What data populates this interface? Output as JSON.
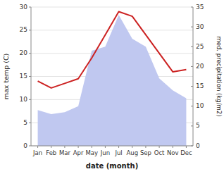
{
  "chart_data": {
    "type": "line",
    "categories": [
      "Jan",
      "Feb",
      "Mar",
      "Apr",
      "May",
      "Jun",
      "Jul",
      "Aug",
      "Sep",
      "Oct",
      "Nov",
      "Dec"
    ],
    "xlabel": "date (month)",
    "ylabel": "max temp (C)",
    "y2label": "med. precipitation (kg/m2)",
    "series": [
      {
        "type": "area",
        "axis": "y2",
        "color": "#c0c8f0",
        "values": [
          9.0,
          8.0,
          8.5,
          10.0,
          24.0,
          25.0,
          33.0,
          27.0,
          25.0,
          17.0,
          14.0,
          12.0
        ]
      },
      {
        "type": "line",
        "color": "#cc2222",
        "values": [
          14.0,
          12.5,
          13.5,
          14.5,
          19.0,
          24.0,
          29.0,
          28.0,
          24.0,
          20.0,
          16.0,
          16.5
        ]
      }
    ],
    "ylim": [
      0,
      30
    ],
    "yticks": [
      0,
      5,
      10,
      15,
      20,
      25,
      30
    ],
    "y2lim": [
      0,
      35
    ],
    "y2ticks": [
      0,
      5,
      10,
      15,
      20,
      25,
      30,
      35
    ],
    "grid": true
  }
}
